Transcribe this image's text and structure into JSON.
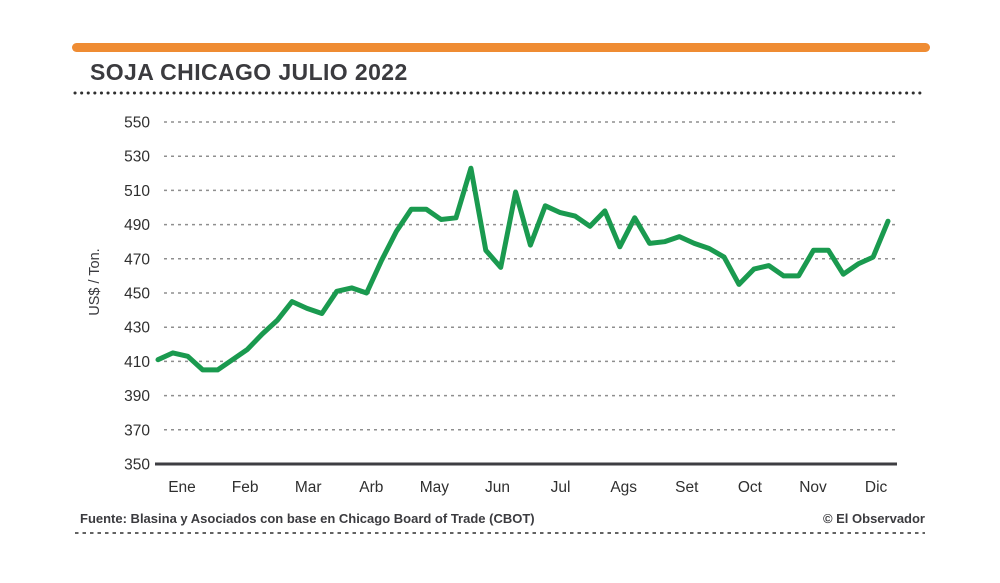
{
  "page": {
    "background": "#ffffff",
    "accent_bar_color": "#ef8c33"
  },
  "header": {
    "title": "SOJA CHICAGO JULIO 2022"
  },
  "chart_data": {
    "type": "line",
    "title": "SOJA CHICAGO JULIO 2022",
    "xlabel": "",
    "ylabel": "US$ / Ton.",
    "ylim": [
      350,
      550
    ],
    "yticks": [
      350,
      370,
      390,
      410,
      430,
      450,
      470,
      490,
      510,
      530,
      550
    ],
    "categories": [
      "Ene",
      "Feb",
      "Mar",
      "Arb",
      "May",
      "Jun",
      "Jul",
      "Ags",
      "Set",
      "Oct",
      "Nov",
      "Dic"
    ],
    "grid": "horizontal-dashed",
    "legend_position": "none",
    "line_color": "#1a9a4f",
    "axis_color": "#3e3e42",
    "grid_color": "#8f8f8f",
    "tick_label_color": "#2f2f2f",
    "series": [
      {
        "name": "Soja Chicago Julio 2022 (US$/Ton.)",
        "frequency": "weekly",
        "values": [
          411,
          415,
          413,
          405,
          405,
          411,
          417,
          426,
          434,
          445,
          441,
          438,
          451,
          453,
          450,
          469,
          486,
          499,
          499,
          493,
          494,
          523,
          475,
          465,
          509,
          478,
          501,
          497,
          495,
          489,
          498,
          477,
          494,
          479,
          480,
          483,
          479,
          476,
          471,
          455,
          464,
          466,
          460,
          460,
          475,
          475,
          461,
          467,
          471,
          492
        ]
      }
    ]
  },
  "footer": {
    "source": "Fuente: Blasina y Asociados con base en Chicago Board of Trade (CBOT)",
    "credit": "© El Observador"
  }
}
